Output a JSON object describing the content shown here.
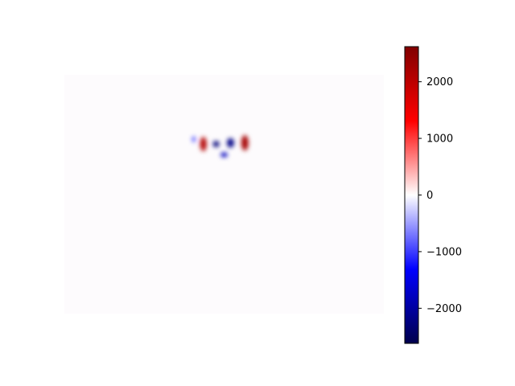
{
  "chart_data": {
    "type": "heatmap",
    "title": "",
    "xlabel": "",
    "ylabel": "",
    "axes_visible": false,
    "colormap": "seismic",
    "colormap_stops": [
      "#00004c",
      "#0000ff",
      "#ffffff",
      "#ff0000",
      "#800000"
    ],
    "background_color": "#fdfbfd",
    "colorbar": {
      "location": "right",
      "vmin": -2620,
      "vmax": 2620,
      "ticks": [
        {
          "value": 2000,
          "label": "2000"
        },
        {
          "value": 1000,
          "label": "1000"
        },
        {
          "value": 0,
          "label": "0"
        },
        {
          "value": -1000,
          "label": "−1000"
        },
        {
          "value": -2000,
          "label": "−2000"
        }
      ]
    },
    "features": [
      {
        "kind": "positive",
        "value": 2100,
        "x": 0.435,
        "y": 0.29,
        "sx": 0.01,
        "sy": 0.03
      },
      {
        "kind": "positive",
        "value": 2250,
        "x": 0.565,
        "y": 0.285,
        "sx": 0.011,
        "sy": 0.032
      },
      {
        "kind": "negative",
        "value": -1300,
        "x": 0.405,
        "y": 0.27,
        "sx": 0.004,
        "sy": 0.012
      },
      {
        "kind": "negative",
        "value": -2300,
        "x": 0.475,
        "y": 0.29,
        "sx": 0.01,
        "sy": 0.013
      },
      {
        "kind": "negative",
        "value": -2200,
        "x": 0.52,
        "y": 0.285,
        "sx": 0.011,
        "sy": 0.02
      },
      {
        "kind": "negative",
        "value": -1800,
        "x": 0.5,
        "y": 0.335,
        "sx": 0.011,
        "sy": 0.01
      }
    ]
  }
}
